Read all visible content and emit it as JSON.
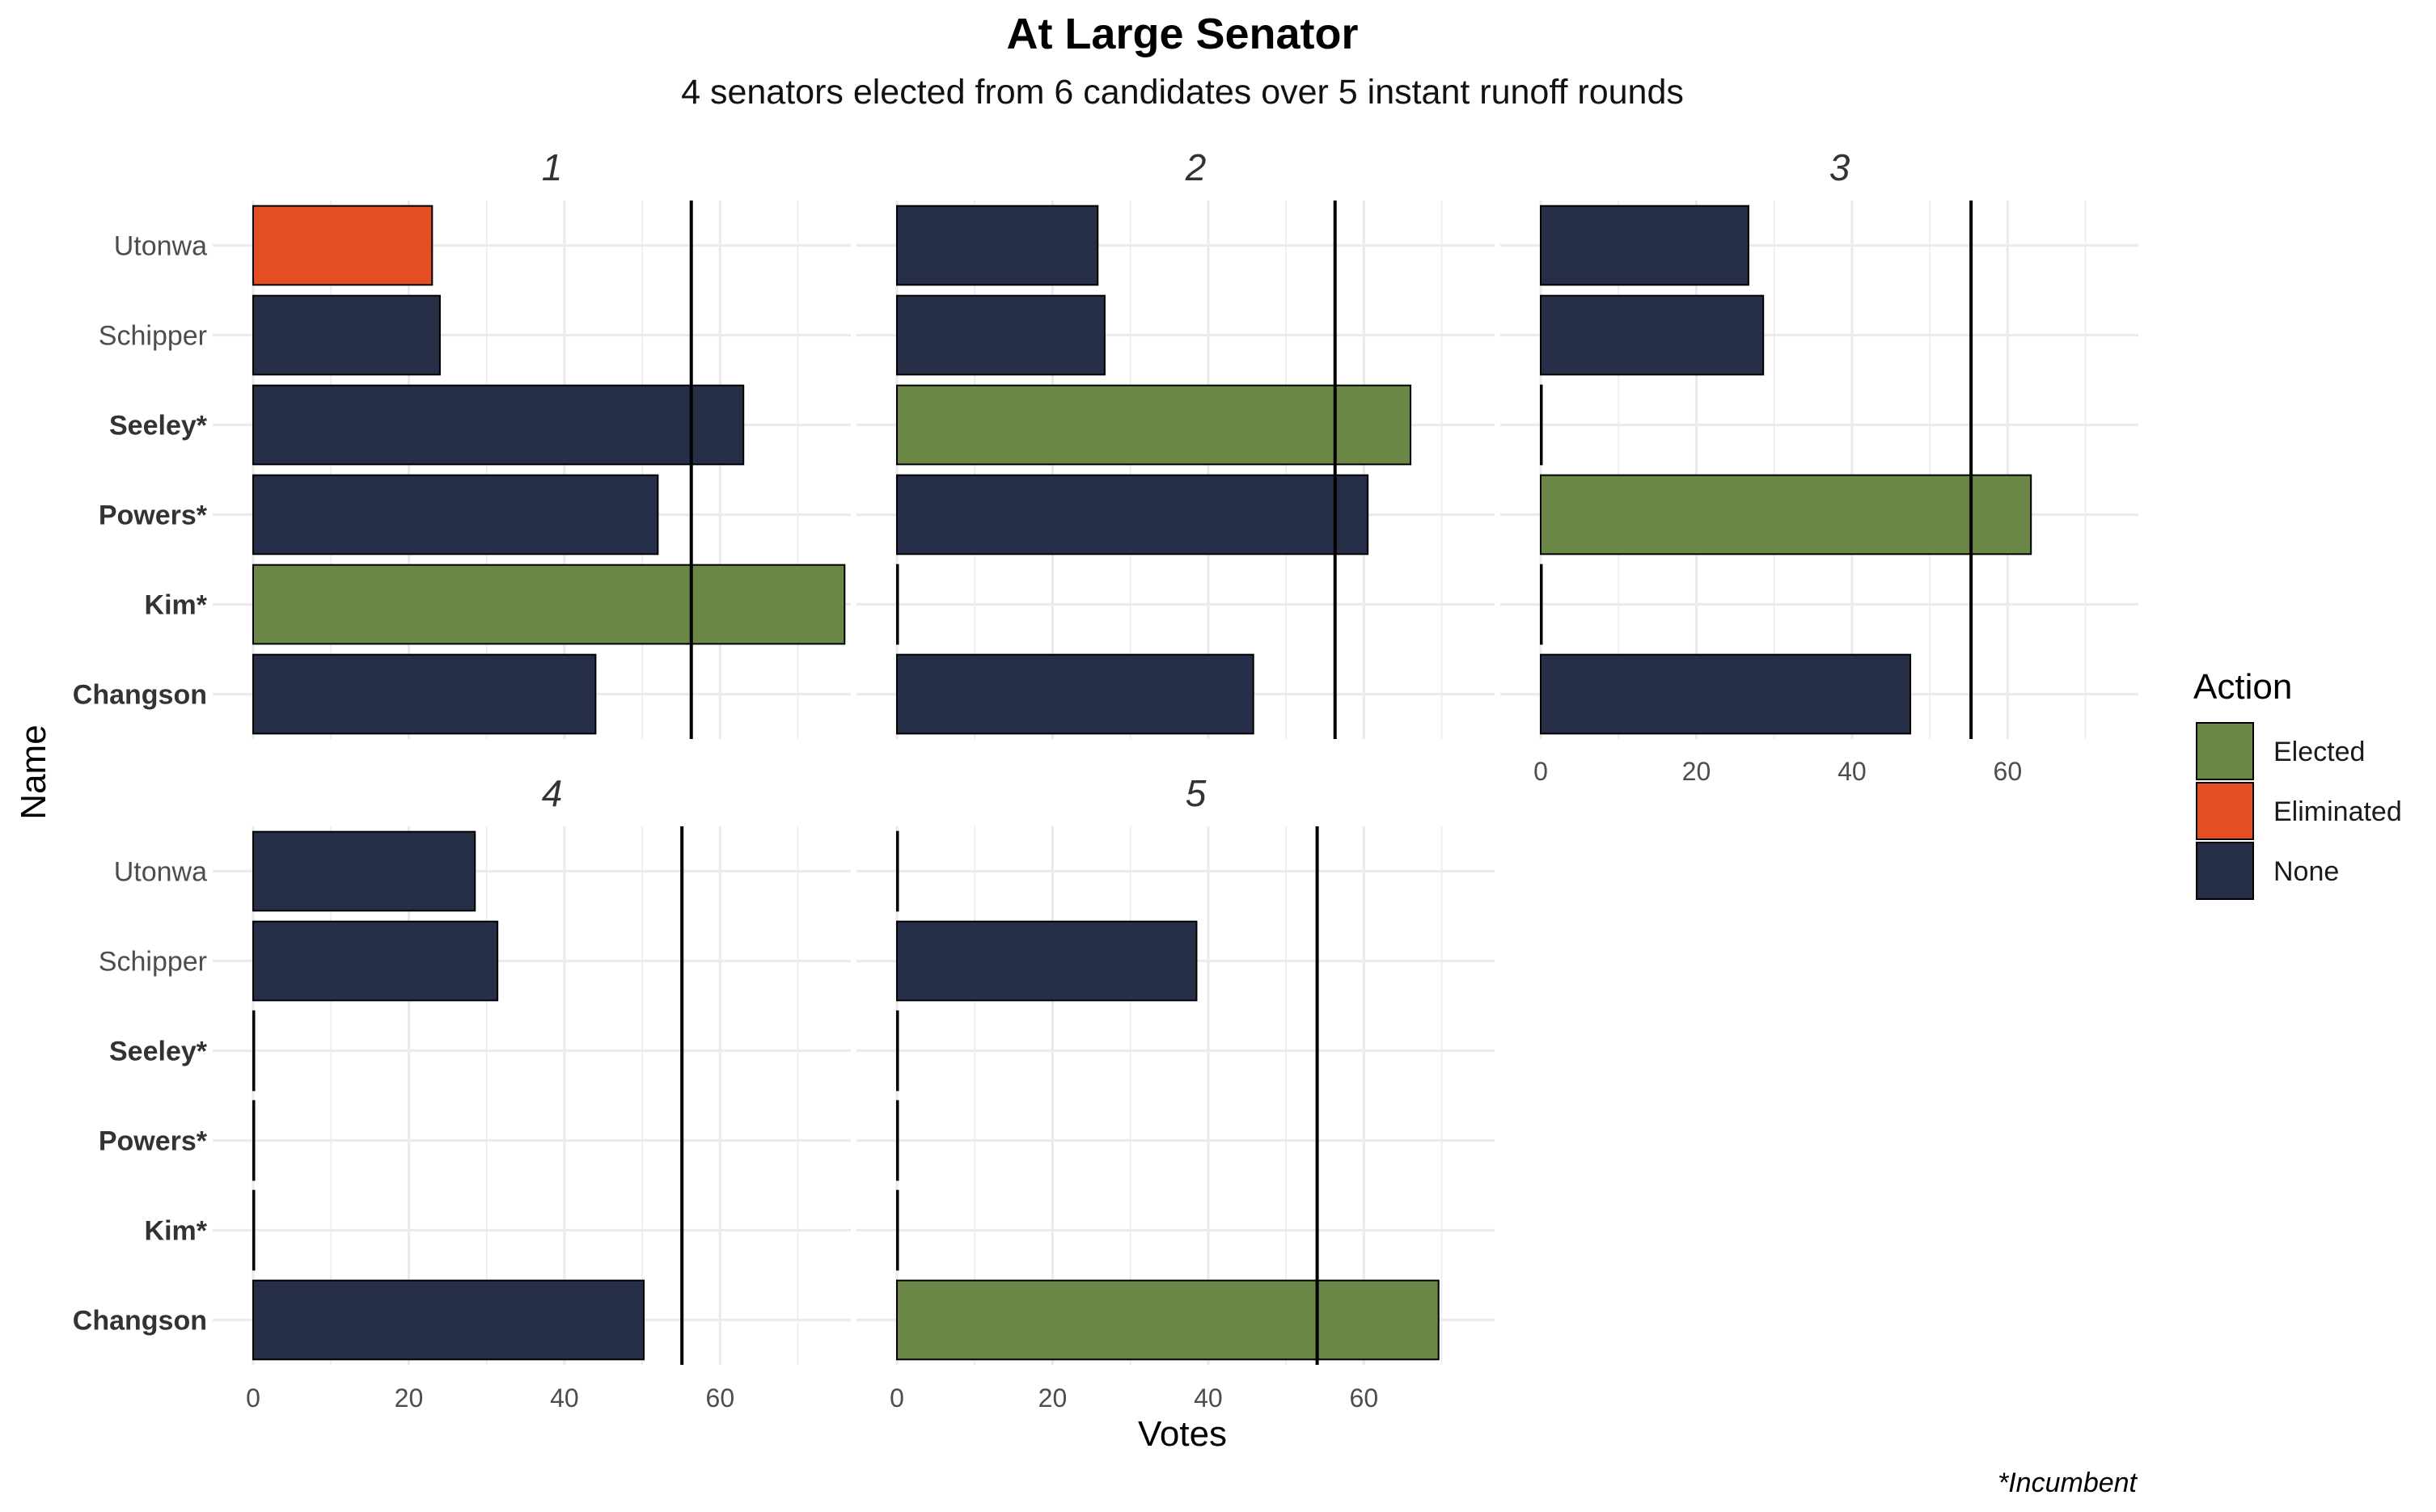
{
  "chart_data": {
    "type": "bar",
    "orientation": "horizontal",
    "title": "At Large Senator",
    "subtitle": "4 senators elected from 6 candidates over 5 instant runoff rounds",
    "xlabel": "Votes",
    "ylabel": "Name",
    "caption": "*Incumbent",
    "xlim": [
      0,
      75
    ],
    "x_ticks": [
      0,
      20,
      40,
      60
    ],
    "grid": true,
    "categories": [
      "Utonwa",
      "Schipper",
      "Seeley*",
      "Powers*",
      "Kim*",
      "Changson"
    ],
    "bold_categories": [
      "Seeley*",
      "Powers*",
      "Kim*",
      "Changson"
    ],
    "legend": {
      "title": "Action",
      "position": "right",
      "entries": [
        {
          "label": "Elected",
          "color": "#6b8745"
        },
        {
          "label": "Eliminated",
          "color": "#e34f22"
        },
        {
          "label": "None",
          "color": "#262f47"
        }
      ]
    },
    "panels": [
      {
        "label": "1",
        "threshold": 56.3,
        "values": [
          23,
          24,
          63,
          52,
          76,
          44
        ],
        "actions": [
          "Eliminated",
          "None",
          "None",
          "None",
          "Elected",
          "None"
        ]
      },
      {
        "label": "2",
        "threshold": 56.3,
        "values": [
          25.8,
          26.7,
          66,
          60.5,
          0,
          45.8
        ],
        "actions": [
          "None",
          "None",
          "Elected",
          "None",
          "None",
          "None"
        ]
      },
      {
        "label": "3",
        "threshold": 55.3,
        "values": [
          26.7,
          28.6,
          0,
          63,
          0,
          47.5
        ],
        "actions": [
          "None",
          "None",
          "None",
          "Elected",
          "None",
          "None"
        ]
      },
      {
        "label": "4",
        "threshold": 55.1,
        "values": [
          28.5,
          31.4,
          0,
          0,
          0,
          50.2
        ],
        "actions": [
          "None",
          "None",
          "None",
          "None",
          "None",
          "None"
        ]
      },
      {
        "label": "5",
        "threshold": 54,
        "values": [
          0,
          38.5,
          0,
          0,
          0,
          69.6
        ],
        "actions": [
          "None",
          "None",
          "None",
          "None",
          "None",
          "Elected"
        ]
      }
    ]
  }
}
